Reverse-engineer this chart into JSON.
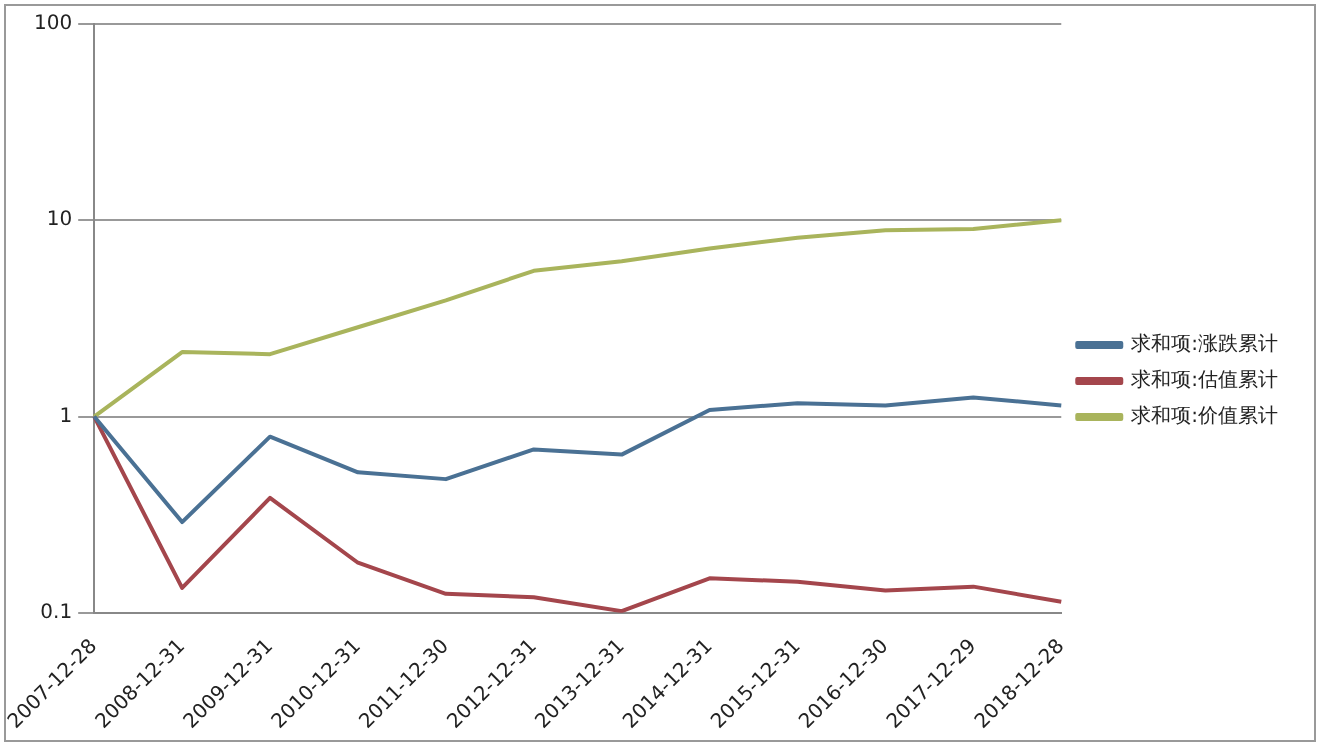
{
  "chart_data": {
    "type": "line",
    "categories": [
      "2007-12-28",
      "2008-12-31",
      "2009-12-31",
      "2010-12-31",
      "2011-12-30",
      "2012-12-31",
      "2013-12-31",
      "2014-12-31",
      "2015-12-31",
      "2016-12-30",
      "2017-12-29",
      "2018-12-28"
    ],
    "series": [
      {
        "name": "求和项:涨跌累计",
        "color": "#4a7194",
        "values": [
          1,
          0.29,
          0.79,
          0.52,
          0.48,
          0.68,
          0.64,
          1.08,
          1.17,
          1.14,
          1.25,
          1.14
        ]
      },
      {
        "name": "求和项:估值累计",
        "color": "#a4464c",
        "values": [
          1,
          0.134,
          0.385,
          0.18,
          0.125,
          0.12,
          0.102,
          0.15,
          0.144,
          0.13,
          0.136,
          0.114
        ]
      },
      {
        "name": "求和项:价值累计",
        "color": "#a9b45c",
        "values": [
          1,
          2.13,
          2.08,
          2.85,
          3.91,
          5.53,
          6.18,
          7.18,
          8.15,
          8.89,
          9.03,
          10
        ]
      }
    ],
    "log": "y",
    "ylim": [
      0.1,
      100
    ],
    "yticks": [
      0.1,
      1,
      10,
      100
    ],
    "grid": "y",
    "legend": "right",
    "marker": "none",
    "line_style": "solid"
  }
}
